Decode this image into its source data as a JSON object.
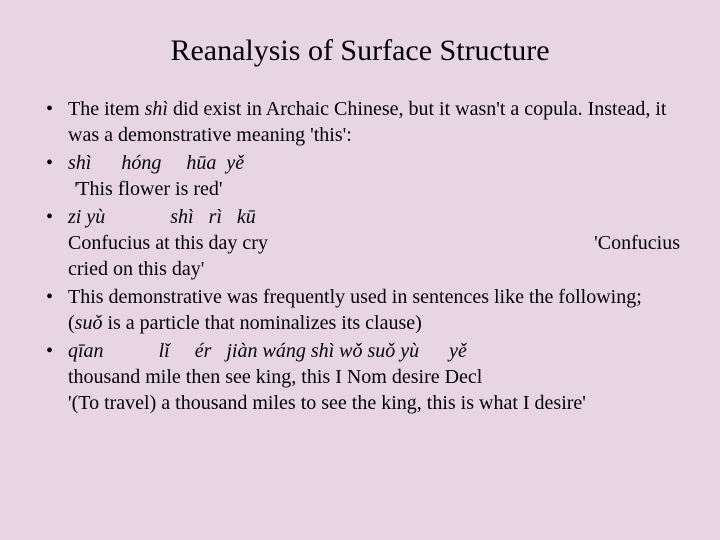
{
  "title": "Reanalysis of Surface Structure",
  "bullets": {
    "b1": {
      "pre": "The item ",
      "ital": "shì",
      "post": " did exist in Archaic Chinese, but it wasn't a copula. Instead, it was a demonstrative meaning 'this':"
    },
    "b2": {
      "line1_w1": "shì",
      "line1_w2": "hóng",
      "line1_w3": "hūa",
      "line1_w4": "yě",
      "line2_pre": "",
      "line2_quote_open": "'",
      "line2_text": "This flower is red'"
    },
    "b3": {
      "w1": "zi yù",
      "w2": "shì",
      "w3": "rì",
      "w4": "kū",
      "gloss_left": "Confucius at this day cry",
      "gloss_right": "'Confucius",
      "line3": "cried on this day'"
    },
    "b4": {
      "pre": "This demonstrative was frequently used in sentences like the following; (",
      "ital": "suǒ",
      "post": " is a particle that nominalizes its clause)"
    },
    "b5": {
      "w1": "qīan",
      "w2": "lǐ",
      "w3": "ér",
      "w4": "jiàn wáng",
      "w5": "shì wǒ suǒ yù",
      "w6": "yě",
      "gloss": "thousand mile then see king, this I Nom desire Decl",
      "trans": "'(To travel) a thousand miles to see the king, this is what I desire'"
    }
  },
  "colors": {
    "background": "#e8d5e3",
    "text": "#000000"
  },
  "typography": {
    "title_fontsize": 30,
    "body_fontsize": 20,
    "font_family": "Times New Roman"
  }
}
